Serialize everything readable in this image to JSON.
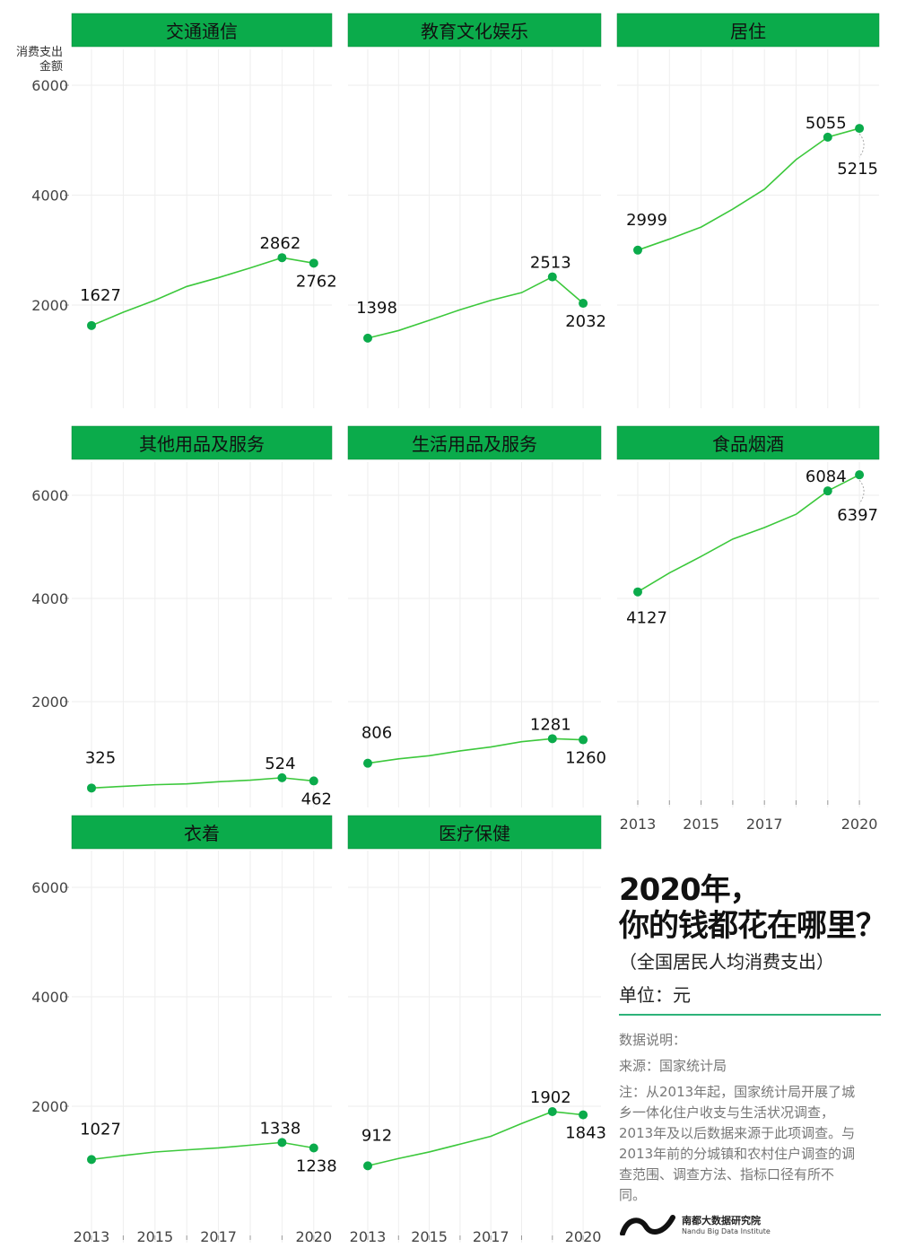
{
  "chart_data": {
    "type": "line",
    "y_axis_title": "消费支出\n金额",
    "x": [
      2013,
      2014,
      2015,
      2016,
      2017,
      2018,
      2019,
      2020
    ],
    "x_tick_labels": [
      "2013",
      "2015",
      "2017",
      "2020"
    ],
    "y_ticks": [
      2000,
      4000,
      6000
    ],
    "y_tick_labels": [
      "2000",
      "4000",
      "6000"
    ],
    "grid": true,
    "line_color": "#3cc83c",
    "point_color": "#0bab4b",
    "header_color": "#0bab4b",
    "panels": [
      {
        "name": "交通通信",
        "values": [
          1627,
          1869,
          2087,
          2338,
          2499,
          2675,
          2862,
          2762
        ],
        "labels": [
          "1627",
          "2862",
          "2762"
        ]
      },
      {
        "name": "教育文化娱乐",
        "values": [
          1398,
          1536,
          1723,
          1915,
          2086,
          2226,
          2513,
          2032
        ],
        "labels": [
          "1398",
          "2513",
          "2032"
        ]
      },
      {
        "name": "居住",
        "values": [
          2999,
          3201,
          3419,
          3746,
          4107,
          4647,
          5055,
          5215
        ],
        "labels": [
          "2999",
          "5055",
          "5215"
        ]
      },
      {
        "name": "其他用品及服务",
        "values": [
          325,
          358,
          389,
          406,
          447,
          477,
          524,
          462
        ],
        "labels": [
          "325",
          "524",
          "462"
        ]
      },
      {
        "name": "生活用品及服务",
        "values": [
          806,
          890,
          951,
          1044,
          1121,
          1223,
          1281,
          1260
        ],
        "labels": [
          "806",
          "1281",
          "1260"
        ]
      },
      {
        "name": "食品烟酒",
        "values": [
          4127,
          4494,
          4814,
          5151,
          5374,
          5631,
          6084,
          6397
        ],
        "labels": [
          "4127",
          "6084",
          "6397"
        ]
      },
      {
        "name": "衣着",
        "values": [
          1027,
          1099,
          1164,
          1203,
          1238,
          1289,
          1338,
          1238
        ],
        "labels": [
          "1027",
          "1338",
          "1238"
        ]
      },
      {
        "name": "医疗保健",
        "values": [
          912,
          1045,
          1165,
          1307,
          1451,
          1685,
          1902,
          1843
        ],
        "labels": [
          "912",
          "1902",
          "1843"
        ]
      }
    ]
  },
  "info": {
    "title_line1": "2020年，",
    "title_line2": "你的钱都花在哪里？",
    "subtitle": "（全国居民人均消费支出）",
    "unit": "单位：元",
    "notes_heading": "数据说明：",
    "source": "来源：国家统计局",
    "note": "注：从2013年起，国家统计局开展了城乡一体化住户收支与生活状况调查，2013年及以后数据来源于此项调查。与2013年前的分城镇和农村住户调查的调查范围、调查方法、指标口径有所不同。"
  },
  "logo": {
    "name_cn": "南都大数据研究院",
    "name_en": "Nandu Big Data Institute"
  }
}
